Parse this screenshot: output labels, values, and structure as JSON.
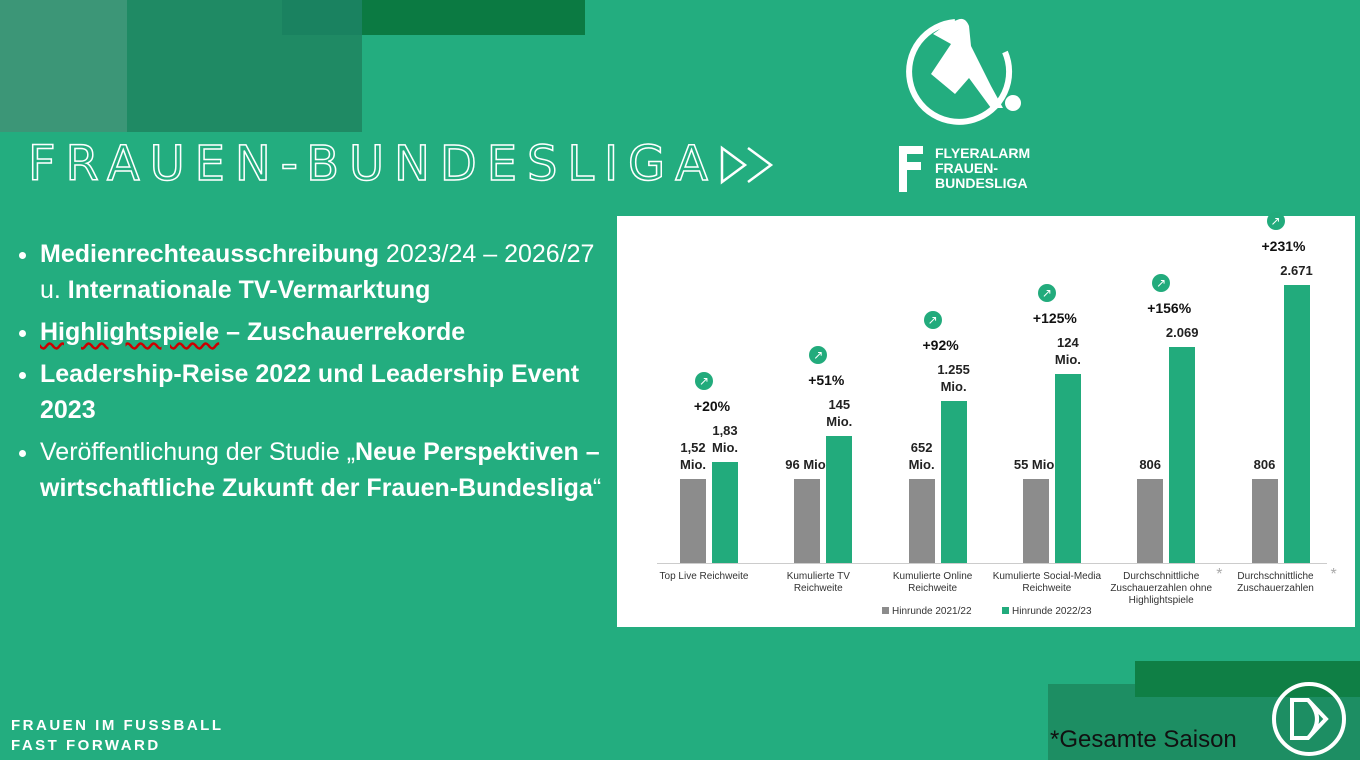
{
  "title": "FRAUEN-BUNDESLIGA",
  "logo_text": [
    "FLYERALARM",
    "FRAUEN-",
    "BUNDESLIGA"
  ],
  "bullets": [
    [
      {
        "text": "Medienrechteausschreibung",
        "bold": true
      },
      {
        "text": " 2023/24 – 2026/27 u. "
      },
      {
        "text": "Internationale TV-Vermarktung",
        "bold": true
      }
    ],
    [
      {
        "text": "Highlightspiele",
        "bold": true,
        "underline": true
      },
      {
        "text": "  – Zuschauerrekorde",
        "bold": true
      }
    ],
    [
      {
        "text": "Leadership-Reise 2022 und Leadership Event 2023",
        "bold": true
      }
    ],
    [
      {
        "text": "Veröffentlichung der Studie „"
      },
      {
        "text": "Neue Perspektiven – wirtschaftliche Zukunft der Frauen-Bundesliga",
        "bold": true
      },
      {
        "text": "“"
      }
    ]
  ],
  "footer": [
    "FRAUEN IM FUSSBALL",
    "FAST FORWARD"
  ],
  "footnote": "*Gesamte Saison",
  "chart_data": {
    "type": "bar",
    "categories": [
      "Top Live Reichweite",
      "Kumulierte TV Reichweite",
      "Kumulierte Online Reichweite",
      "Kumulierte Social-Media Reichweite",
      "Durchschnittliche Zuschauerzahlen ohne Highlightspiele",
      "Durchschnittliche Zuschauerzahlen"
    ],
    "series": [
      {
        "name": "Hinrunde 2021/22",
        "color": "#8c8c8c",
        "values": [
          1.52,
          96,
          652,
          55,
          806,
          806
        ],
        "value_labels": [
          "1,52 Mio.",
          "96 Mio.",
          "652 Mio.",
          "55 Mio.",
          "806",
          "806"
        ]
      },
      {
        "name": "Hinrunde 2022/23",
        "color": "#22ab7c",
        "values": [
          1.83,
          145,
          1255,
          124,
          2069,
          2671
        ],
        "value_labels": [
          "1,83 Mio.",
          "145 Mio.",
          "1.255 Mio.",
          "124 Mio.",
          "2.069",
          "2.671"
        ]
      }
    ],
    "annotations": [
      "+20%",
      "+51%",
      "+92%",
      "+125%",
      "+156%",
      "+231%"
    ],
    "asterisk": "*"
  }
}
